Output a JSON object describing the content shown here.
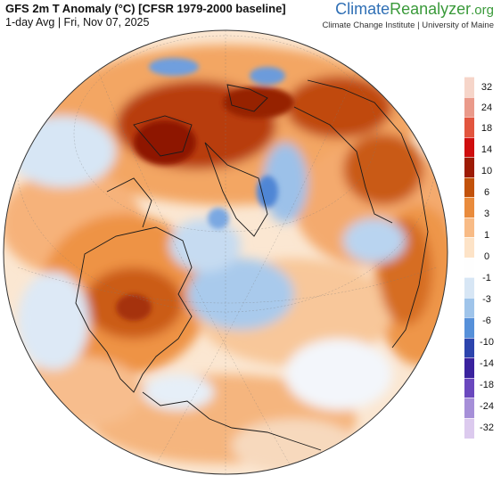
{
  "header": {
    "title": "GFS 2m T Anomaly (°C) [CFSR 1979-2000 baseline]",
    "subtitle": "1-day Avg | Fri, Nov 07, 2025"
  },
  "brand": {
    "part1": "Climate",
    "part2": "Reanalyzer",
    "part3": ".org",
    "affiliation": "Climate Change Institute | University of Maine"
  },
  "map": {
    "type": "orthographic-globe",
    "variable": "2m temperature anomaly"
  },
  "legend": {
    "labels": [
      "32",
      "24",
      "18",
      "14",
      "10",
      "6",
      "3",
      "1",
      "0",
      "-1",
      "-3",
      "-6",
      "-10",
      "-14",
      "-18",
      "-24",
      "-32"
    ],
    "colors": [
      "#f6d5c9",
      "#ea9a8a",
      "#e2553e",
      "#cf0e0e",
      "#9d1b05",
      "#c2520b",
      "#e98b3c",
      "#f8bb86",
      "#fde3c7",
      "#fefefe",
      "#d7e6f5",
      "#9fc4ea",
      "#5690d9",
      "#2c44ad",
      "#3a229e",
      "#6a48be",
      "#a68fd8",
      "#dccaee"
    ]
  }
}
